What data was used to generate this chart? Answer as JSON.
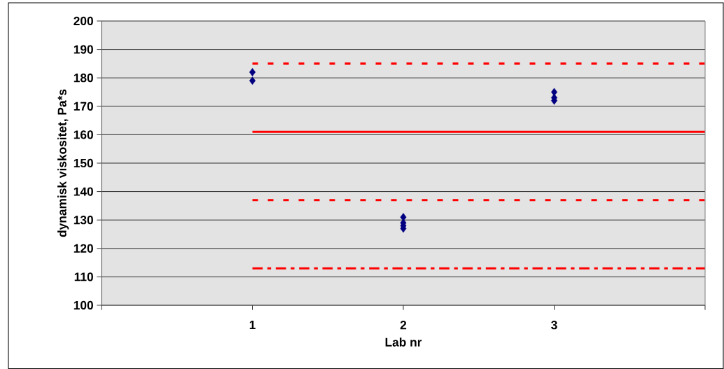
{
  "chart_data": {
    "type": "scatter",
    "xlabel": "Lab nr",
    "ylabel": "dynamisk viskositet, Pa*s",
    "xlim": [
      0,
      4
    ],
    "xticks": [
      {
        "value": 0,
        "label": null
      },
      1,
      2,
      3,
      {
        "value": 4,
        "label": null
      }
    ],
    "ylim": [
      100,
      200
    ],
    "yticks": [
      100,
      110,
      120,
      130,
      140,
      150,
      160,
      170,
      180,
      190,
      200
    ],
    "grid": "y",
    "series": [
      {
        "color": "#000080",
        "marker": "diamond",
        "x": [
          1,
          1,
          2,
          2,
          2,
          2,
          3,
          3,
          3
        ],
        "values": [
          182,
          179,
          131,
          129,
          128,
          127,
          175,
          173,
          172
        ]
      },
      {
        "type": "line",
        "color": "#ff0000",
        "marker": "none",
        "line_style": "dotted",
        "x": [
          1,
          4
        ],
        "values": [
          185,
          185
        ]
      },
      {
        "type": "line",
        "color": "#ff0000",
        "marker": "none",
        "line_style": "solid",
        "x": [
          1,
          4
        ],
        "values": [
          161,
          161
        ]
      },
      {
        "type": "line",
        "color": "#ff0000",
        "marker": "none",
        "line_style": "dotted",
        "x": [
          1,
          4
        ],
        "values": [
          137,
          137
        ]
      },
      {
        "type": "line",
        "color": "#ff0000",
        "marker": "none",
        "line_style": "dashdot",
        "x": [
          1,
          4
        ],
        "values": [
          113,
          113
        ]
      }
    ]
  }
}
